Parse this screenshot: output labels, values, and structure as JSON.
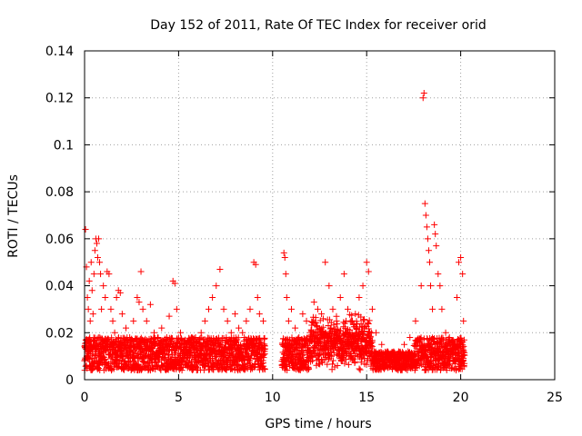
{
  "chart_data": {
    "type": "scatter",
    "title": "Day 152 of 2011, Rate Of TEC Index for receiver orid",
    "xlabel": "GPS time / hours",
    "ylabel": "ROTI / TECUs",
    "xlim": [
      0,
      25
    ],
    "ylim": [
      0,
      0.14
    ],
    "xticks": [
      0,
      5,
      10,
      15,
      20,
      25
    ],
    "xtick_labels": [
      "0",
      "5",
      "10",
      "15",
      "20",
      "25"
    ],
    "yticks": [
      0,
      0.02,
      0.04,
      0.06,
      0.08,
      0.1,
      0.12,
      0.14
    ],
    "ytick_labels": [
      "0",
      "0.02",
      "0.04",
      "0.06",
      "0.08",
      "0.1",
      "0.12",
      "0.14"
    ],
    "grid": true,
    "marker": "+",
    "color": "#ff0000",
    "series": [
      {
        "points": [
          [
            0.05,
            0.064
          ],
          [
            0.1,
            0.048
          ],
          [
            0.15,
            0.035
          ],
          [
            0.2,
            0.03
          ],
          [
            0.25,
            0.042
          ],
          [
            0.3,
            0.025
          ],
          [
            0.35,
            0.05
          ],
          [
            0.4,
            0.038
          ],
          [
            0.45,
            0.028
          ],
          [
            0.5,
            0.045
          ],
          [
            0.55,
            0.055
          ],
          [
            0.6,
            0.06
          ],
          [
            0.65,
            0.058
          ],
          [
            0.7,
            0.052
          ],
          [
            0.75,
            0.06
          ],
          [
            0.8,
            0.05
          ],
          [
            0.85,
            0.045
          ],
          [
            0.9,
            0.03
          ],
          [
            1.0,
            0.04
          ],
          [
            1.1,
            0.035
          ],
          [
            1.2,
            0.046
          ],
          [
            1.3,
            0.045
          ],
          [
            1.4,
            0.03
          ],
          [
            1.5,
            0.025
          ],
          [
            1.6,
            0.02
          ],
          [
            1.7,
            0.035
          ],
          [
            1.8,
            0.038
          ],
          [
            1.9,
            0.037
          ],
          [
            2.0,
            0.028
          ],
          [
            2.2,
            0.022
          ],
          [
            2.4,
            0.018
          ],
          [
            2.6,
            0.025
          ],
          [
            2.8,
            0.035
          ],
          [
            2.9,
            0.033
          ],
          [
            3.0,
            0.046
          ],
          [
            3.1,
            0.03
          ],
          [
            3.3,
            0.025
          ],
          [
            3.5,
            0.032
          ],
          [
            3.7,
            0.02
          ],
          [
            3.9,
            0.018
          ],
          [
            4.1,
            0.022
          ],
          [
            4.3,
            0.015
          ],
          [
            4.5,
            0.027
          ],
          [
            4.7,
            0.042
          ],
          [
            4.8,
            0.041
          ],
          [
            4.9,
            0.03
          ],
          [
            5.1,
            0.02
          ],
          [
            5.3,
            0.015
          ],
          [
            5.6,
            0.012
          ],
          [
            5.9,
            0.018
          ],
          [
            6.2,
            0.02
          ],
          [
            6.4,
            0.025
          ],
          [
            6.6,
            0.03
          ],
          [
            6.8,
            0.035
          ],
          [
            7.0,
            0.04
          ],
          [
            7.2,
            0.047
          ],
          [
            7.4,
            0.03
          ],
          [
            7.6,
            0.025
          ],
          [
            7.8,
            0.02
          ],
          [
            8.0,
            0.028
          ],
          [
            8.2,
            0.022
          ],
          [
            8.4,
            0.02
          ],
          [
            8.6,
            0.025
          ],
          [
            8.8,
            0.03
          ],
          [
            9.0,
            0.05
          ],
          [
            9.1,
            0.049
          ],
          [
            9.2,
            0.035
          ],
          [
            9.3,
            0.028
          ],
          [
            9.5,
            0.025
          ],
          [
            10.6,
            0.054
          ],
          [
            10.65,
            0.052
          ],
          [
            10.7,
            0.045
          ],
          [
            10.75,
            0.035
          ],
          [
            10.85,
            0.025
          ],
          [
            11.0,
            0.03
          ],
          [
            11.2,
            0.022
          ],
          [
            11.4,
            0.018
          ],
          [
            11.6,
            0.028
          ],
          [
            11.8,
            0.025
          ],
          [
            12.0,
            0.02
          ],
          [
            12.2,
            0.033
          ],
          [
            12.4,
            0.03
          ],
          [
            12.6,
            0.028
          ],
          [
            12.8,
            0.05
          ],
          [
            13.0,
            0.04
          ],
          [
            13.2,
            0.03
          ],
          [
            13.4,
            0.025
          ],
          [
            13.6,
            0.035
          ],
          [
            13.8,
            0.045
          ],
          [
            14.0,
            0.03
          ],
          [
            14.2,
            0.025
          ],
          [
            14.4,
            0.028
          ],
          [
            14.6,
            0.035
          ],
          [
            14.8,
            0.04
          ],
          [
            15.0,
            0.05
          ],
          [
            15.1,
            0.046
          ],
          [
            15.3,
            0.03
          ],
          [
            15.5,
            0.02
          ],
          [
            15.8,
            0.015
          ],
          [
            16.1,
            0.012
          ],
          [
            16.4,
            0.01
          ],
          [
            16.7,
            0.012
          ],
          [
            17.0,
            0.015
          ],
          [
            17.3,
            0.018
          ],
          [
            17.6,
            0.025
          ],
          [
            17.9,
            0.04
          ],
          [
            18.0,
            0.12
          ],
          [
            18.05,
            0.122
          ],
          [
            18.1,
            0.075
          ],
          [
            18.15,
            0.07
          ],
          [
            18.2,
            0.065
          ],
          [
            18.25,
            0.06
          ],
          [
            18.3,
            0.055
          ],
          [
            18.35,
            0.05
          ],
          [
            18.4,
            0.04
          ],
          [
            18.5,
            0.03
          ],
          [
            18.6,
            0.066
          ],
          [
            18.65,
            0.062
          ],
          [
            18.7,
            0.057
          ],
          [
            18.8,
            0.045
          ],
          [
            18.9,
            0.04
          ],
          [
            19.0,
            0.03
          ],
          [
            19.2,
            0.02
          ],
          [
            19.4,
            0.018
          ],
          [
            19.6,
            0.015
          ],
          [
            19.8,
            0.035
          ],
          [
            19.9,
            0.05
          ],
          [
            20.0,
            0.052
          ],
          [
            20.1,
            0.045
          ],
          [
            20.15,
            0.025
          ]
        ],
        "dense_band_description_values": []
      }
    ]
  }
}
